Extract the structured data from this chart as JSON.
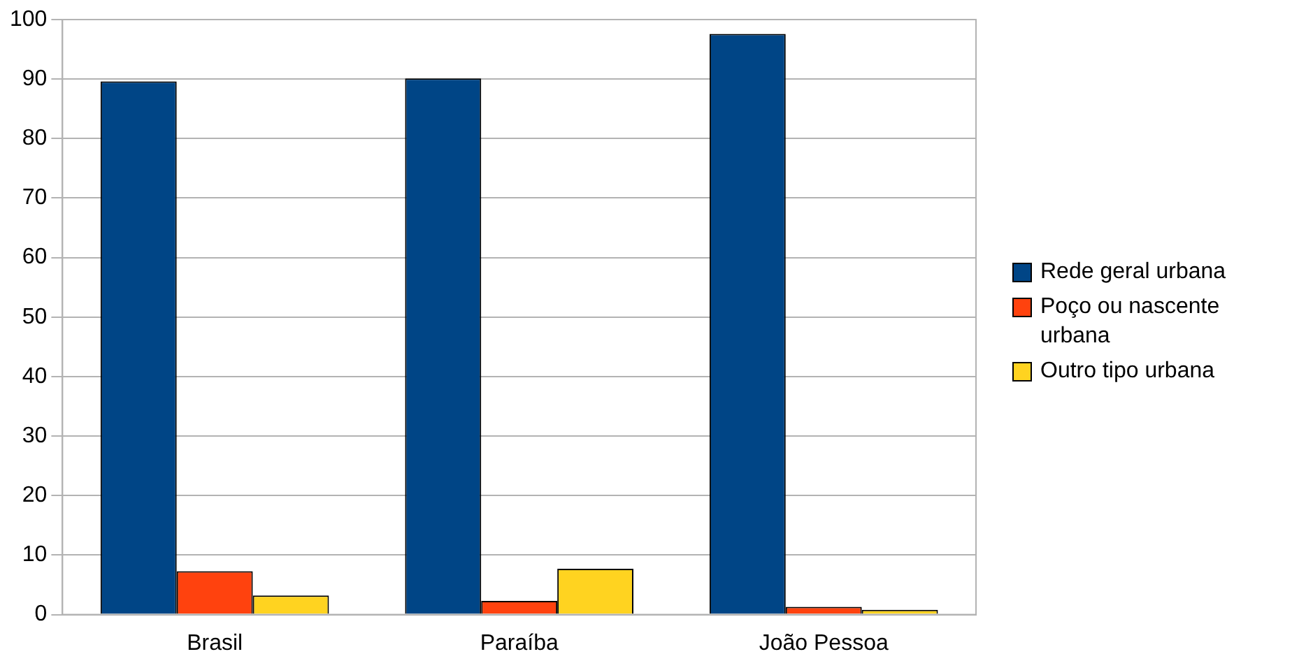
{
  "chart_data": {
    "type": "bar",
    "categories": [
      "Brasil",
      "Paraíba",
      "João Pessoa"
    ],
    "series": [
      {
        "name": "Rede geral urbana",
        "color": "#004586",
        "values": [
          89.6,
          90.1,
          97.6
        ]
      },
      {
        "name": "Poço ou nascente urbana",
        "color": "#ff420e",
        "values": [
          7.3,
          2.3,
          1.3
        ]
      },
      {
        "name": "Outro tipo urbana",
        "color": "#ffd320",
        "values": [
          3.2,
          7.7,
          0.8
        ]
      }
    ],
    "ylim": [
      0,
      100
    ],
    "yticks": [
      0,
      10,
      20,
      30,
      40,
      50,
      60,
      70,
      80,
      90,
      100
    ],
    "grid": "y",
    "legend": "right"
  }
}
